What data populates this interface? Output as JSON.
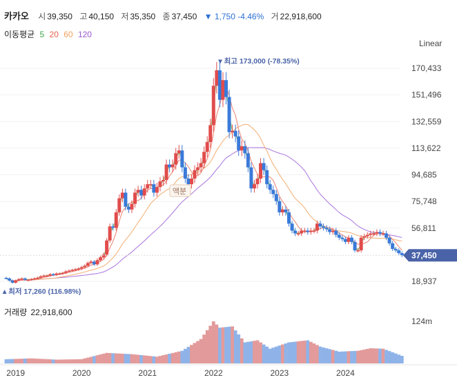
{
  "header": {
    "name": "카카오",
    "open_label": "시",
    "open": "39,350",
    "high_label": "고",
    "high": "40,150",
    "low_label": "저",
    "low": "35,350",
    "close_label": "종",
    "close": "37,450",
    "change_arrow": "▼",
    "change": "1,750",
    "change_pct": "-4.46%",
    "volume_label": "거",
    "volume": "22,918,600"
  },
  "moving_average": {
    "label": "이동평균",
    "periods": [
      {
        "value": "5",
        "color": "#3aa54a"
      },
      {
        "value": "20",
        "color": "#e8604c"
      },
      {
        "value": "60",
        "color": "#f0a15e"
      },
      {
        "value": "120",
        "color": "#9b59d0"
      }
    ]
  },
  "scale_button": "Linear",
  "colors": {
    "up": "#e14c4c",
    "down": "#3a7ad9",
    "vol_up": "#e39a9a",
    "vol_down": "#8fb3e8",
    "ma5": "#7ac46a",
    "ma20": "#ee8c7c",
    "ma60": "#f3b37b",
    "ma120": "#b07fe0",
    "current_tag": "#4a63a8"
  },
  "volume_panel": {
    "title": "거래량",
    "value": "22,918,600",
    "axis_label": "124m"
  },
  "chart_data": {
    "type": "candlestick",
    "y_ticks": [
      "170,433",
      "151,496",
      "132,559",
      "113,622",
      "94,685",
      "75,748",
      "56,811",
      "18,937"
    ],
    "y_tick_values": [
      170433,
      151496,
      132559,
      113622,
      94685,
      75748,
      56811,
      18937
    ],
    "ylim": [
      12000,
      180000
    ],
    "x_ticks": [
      "2019",
      "2020",
      "2021",
      "2022",
      "2023",
      "2024"
    ],
    "current_price": {
      "label": "37,450",
      "value": 37450
    },
    "annotations": {
      "high": {
        "label": "최고",
        "value_text": "173,000 (-78.35%)",
        "value": 173000,
        "index": 68
      },
      "low": {
        "label": "최저",
        "value_text": "17,260 (116.98%)",
        "value": 17260,
        "index": 2
      },
      "split": {
        "label": "액분",
        "index": 58
      }
    },
    "closes": [
      21000,
      19500,
      18000,
      19500,
      20500,
      21000,
      20000,
      20000,
      20500,
      21000,
      21500,
      22500,
      23000,
      23000,
      24000,
      23500,
      24500,
      24500,
      25000,
      26000,
      26500,
      27000,
      27500,
      28000,
      29000,
      30000,
      32000,
      33000,
      31000,
      34000,
      36000,
      38000,
      48000,
      58000,
      57000,
      68000,
      78000,
      82000,
      72000,
      70000,
      74000,
      82000,
      84000,
      80000,
      85000,
      88000,
      88000,
      82000,
      86000,
      90000,
      91000,
      102000,
      100000,
      102000,
      110000,
      112000,
      100000,
      92000,
      88000,
      92000,
      98000,
      100000,
      103000,
      111000,
      118000,
      130000,
      158000,
      169000,
      148000,
      162000,
      150000,
      125000,
      126000,
      122000,
      112000,
      115000,
      110000,
      100000,
      85000,
      88000,
      92000,
      103000,
      98000,
      88000,
      84000,
      81000,
      76000,
      68000,
      70000,
      68000,
      60000,
      55000,
      53000,
      53000,
      55000,
      55000,
      54000,
      55000,
      55000,
      60000,
      58000,
      57000,
      56000,
      54000,
      55000,
      52000,
      50000,
      49000,
      47000,
      50000,
      47000,
      41000,
      41000,
      50000,
      51000,
      52000,
      53000,
      53000,
      54000,
      53000,
      53000,
      50000,
      46000,
      42000,
      41000,
      39000,
      37450
    ],
    "vol_markers": [
      {
        "i": 0,
        "ratio": 0.1,
        "up": false
      },
      {
        "i": 8,
        "ratio": 0.12,
        "up": true
      },
      {
        "i": 16,
        "ratio": 0.09,
        "up": true
      },
      {
        "i": 24,
        "ratio": 0.1,
        "up": false
      },
      {
        "i": 32,
        "ratio": 0.25,
        "up": true
      },
      {
        "i": 40,
        "ratio": 0.22,
        "up": true
      },
      {
        "i": 48,
        "ratio": 0.16,
        "up": false
      },
      {
        "i": 56,
        "ratio": 0.3,
        "up": false
      },
      {
        "i": 62,
        "ratio": 0.58,
        "up": true
      },
      {
        "i": 66,
        "ratio": 1.0,
        "up": true
      },
      {
        "i": 68,
        "ratio": 0.85,
        "up": true
      },
      {
        "i": 72,
        "ratio": 0.88,
        "up": true
      },
      {
        "i": 76,
        "ratio": 0.5,
        "up": false
      },
      {
        "i": 80,
        "ratio": 0.55,
        "up": false
      },
      {
        "i": 84,
        "ratio": 0.35,
        "up": false
      },
      {
        "i": 90,
        "ratio": 0.5,
        "up": true
      },
      {
        "i": 96,
        "ratio": 0.55,
        "up": true
      },
      {
        "i": 100,
        "ratio": 0.4,
        "up": false
      },
      {
        "i": 106,
        "ratio": 0.28,
        "up": true
      },
      {
        "i": 112,
        "ratio": 0.3,
        "up": false
      },
      {
        "i": 116,
        "ratio": 0.36,
        "up": true
      },
      {
        "i": 120,
        "ratio": 0.35,
        "up": true
      },
      {
        "i": 126,
        "ratio": 0.18,
        "up": false
      }
    ]
  }
}
